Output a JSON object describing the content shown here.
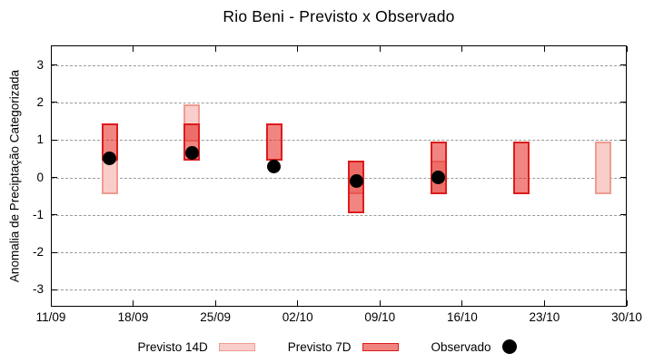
{
  "chart_data": {
    "type": "bar",
    "subtype": "weekly floating category-range bars (forecast) with observed scatter points",
    "title": "Rio Beni - Previsto x Observado",
    "ylabel": "Anomalia de Preciptação Categorizada",
    "xlabel": "",
    "yticks": [
      3,
      2,
      1,
      0,
      -1,
      -2,
      -3
    ],
    "ylim": [
      -3.45,
      3.5
    ],
    "grid": "horizontal dashed lines at integer y values, no vertical grid",
    "legend_position": "bottom-center",
    "xtick_labels": [
      "11/09",
      "18/09",
      "25/09",
      "02/10",
      "09/10",
      "16/10",
      "23/10",
      "30/10"
    ],
    "xtick_days": [
      0,
      7,
      14,
      21,
      28,
      35,
      42,
      49
    ],
    "xlim_days": [
      0,
      49
    ],
    "series": [
      {
        "name": "Previsto 14D",
        "type": "range-bar",
        "data": [
          {
            "date": "16/09",
            "day": 5,
            "range": [
              -0.45,
              0.45
            ]
          },
          {
            "date": "23/09",
            "day": 12,
            "range": [
              0.95,
              1.95
            ]
          },
          {
            "date": "07/10",
            "day": 26,
            "range": [
              -0.45,
              0.45
            ]
          },
          {
            "date": "14/10",
            "day": 33,
            "range": [
              -0.45,
              0.45
            ]
          },
          {
            "date": "28/10",
            "day": 47,
            "range": [
              -0.45,
              0.95
            ]
          }
        ]
      },
      {
        "name": "Previsto 7D",
        "type": "range-bar",
        "data": [
          {
            "date": "16/09",
            "day": 5,
            "range": [
              0.45,
              1.45
            ]
          },
          {
            "date": "23/09",
            "day": 12,
            "range": [
              0.45,
              1.45
            ]
          },
          {
            "date": "30/09",
            "day": 19,
            "range": [
              0.45,
              1.45
            ]
          },
          {
            "date": "07/10",
            "day": 26,
            "range": [
              -0.95,
              0.45
            ]
          },
          {
            "date": "14/10",
            "day": 33,
            "range": [
              -0.45,
              0.95
            ]
          },
          {
            "date": "21/10",
            "day": 40,
            "range": [
              -0.45,
              0.95
            ]
          }
        ]
      },
      {
        "name": "Observado",
        "type": "scatter",
        "data": [
          {
            "date": "16/09",
            "day": 5,
            "value": 0.5
          },
          {
            "date": "23/09",
            "day": 12,
            "value": 0.65
          },
          {
            "date": "30/09",
            "day": 19,
            "value": 0.3
          },
          {
            "date": "07/10",
            "day": 26,
            "value": -0.1
          },
          {
            "date": "14/10",
            "day": 33,
            "value": 0.0
          }
        ]
      }
    ],
    "legend": [
      {
        "label": "Previsto 14D",
        "swatch": "bar-14d"
      },
      {
        "label": "Previsto 7D",
        "swatch": "bar-7d"
      },
      {
        "label": "Observado",
        "swatch": "dot"
      }
    ],
    "colors": {
      "previsto_14d_fill": "#f9cdc9",
      "previsto_14d_border": "#ef9b93",
      "previsto_7d_fill": "#f0837d",
      "previsto_7d_border": "#dd1c1c",
      "overlap_fill": "#ee6e69",
      "observado": "#000000",
      "grid": "#9a9a9a",
      "frame": "#000000",
      "background": "#ffffff"
    }
  }
}
